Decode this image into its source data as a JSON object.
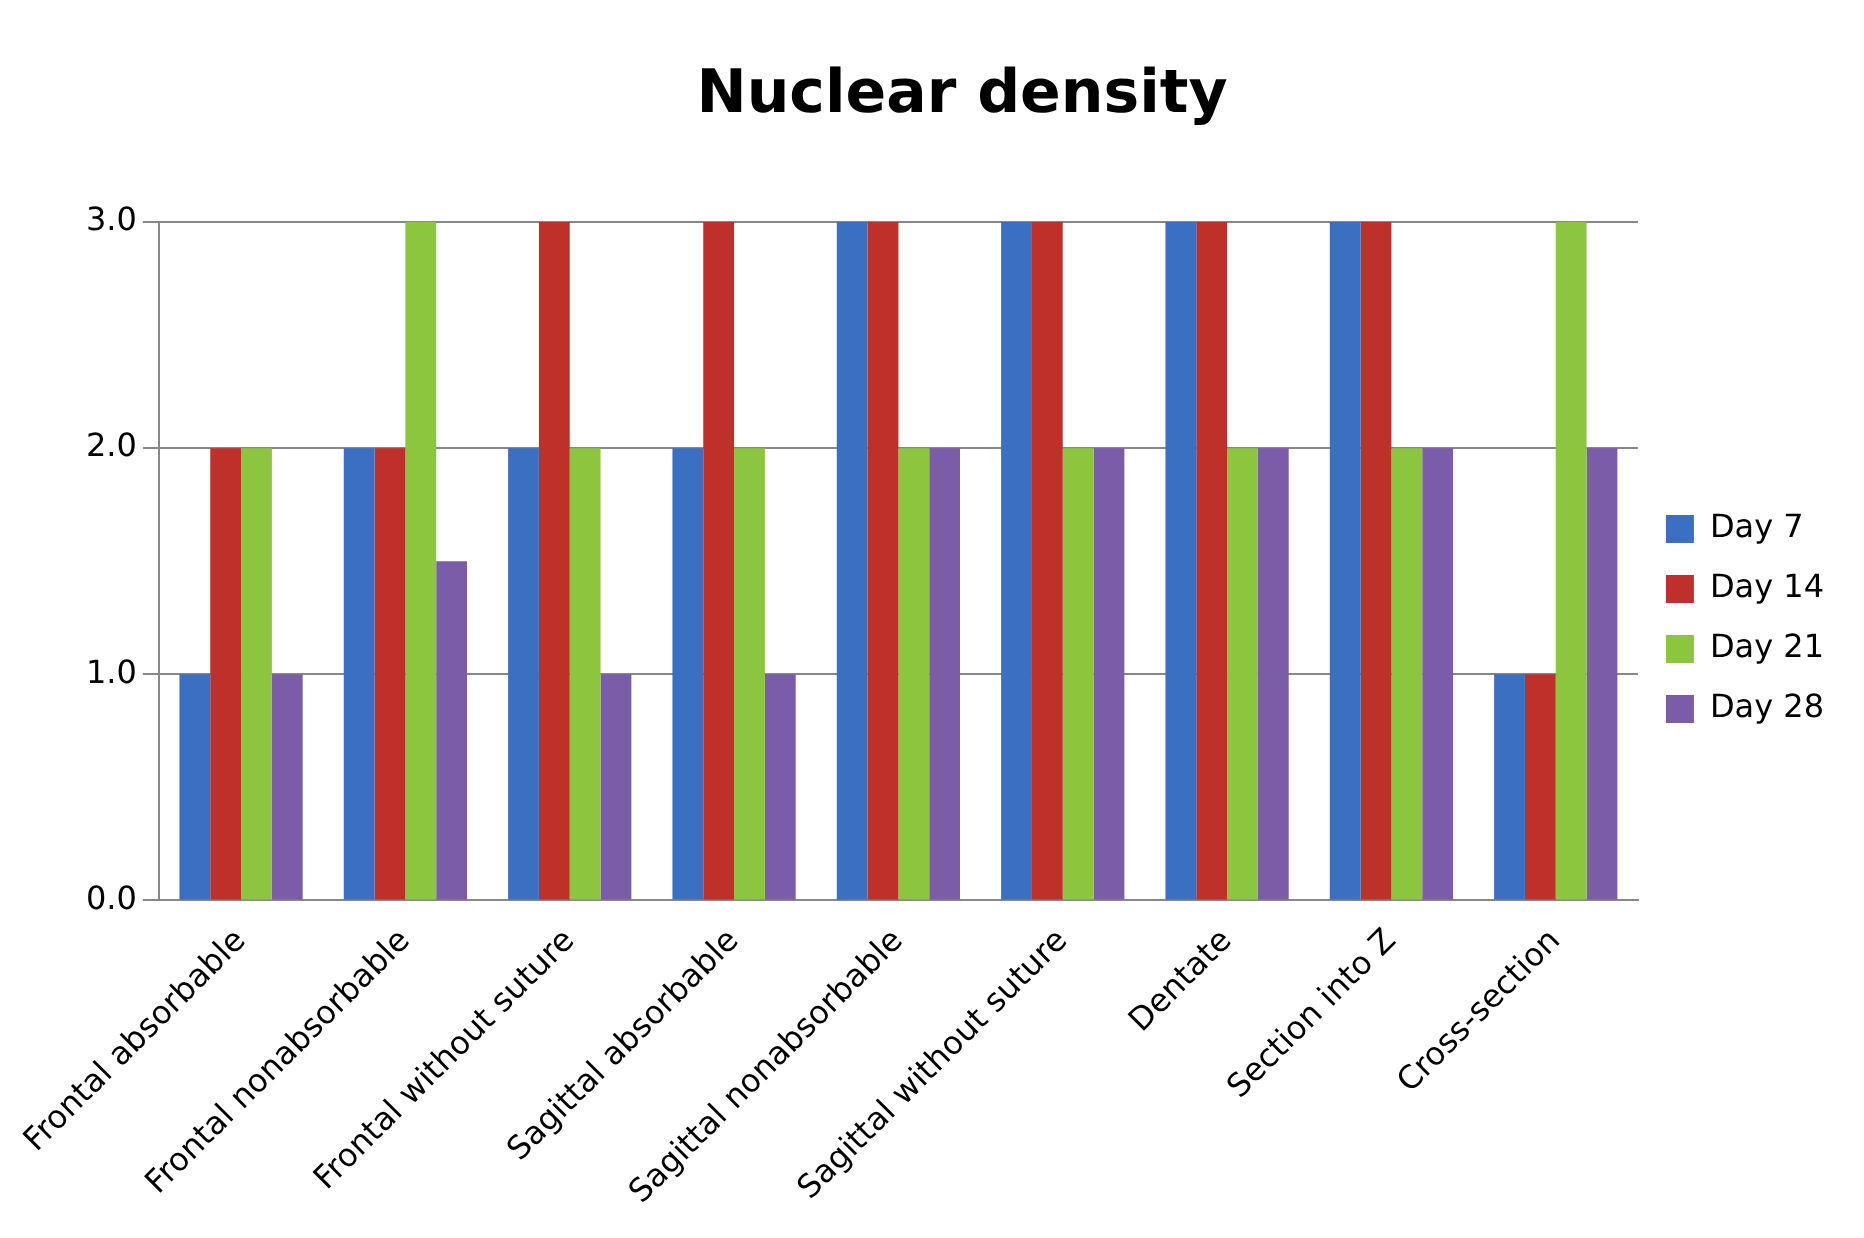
{
  "chart_data": {
    "type": "bar",
    "title": "Nuclear density",
    "categories": [
      "Frontal absorbable",
      "Frontal nonabsorbable",
      "Frontal without suture",
      "Sagittal absorbable",
      "Sagittal nonabsorbable",
      "Sagittal without suture",
      "Dentate",
      "Section into Z",
      "Cross-section"
    ],
    "series": [
      {
        "name": "Day 7",
        "color": "#3b6fc2",
        "values": [
          1,
          2,
          2,
          2,
          3,
          3,
          3,
          3,
          1
        ]
      },
      {
        "name": "Day 14",
        "color": "#c0302b",
        "values": [
          2,
          2,
          3,
          3,
          3,
          3,
          3,
          3,
          1
        ]
      },
      {
        "name": "Day 21",
        "color": "#8cc63f",
        "values": [
          2,
          3,
          2,
          2,
          2,
          2,
          2,
          2,
          3
        ]
      },
      {
        "name": "Day 28",
        "color": "#7b5ca8",
        "values": [
          1,
          1.5,
          1,
          1,
          2,
          2,
          2,
          2,
          2
        ]
      }
    ],
    "ylim": [
      0,
      3
    ],
    "yticks": [
      {
        "value": 0,
        "label": "0.0"
      },
      {
        "value": 1,
        "label": "1.0"
      },
      {
        "value": 2,
        "label": "2.0"
      },
      {
        "value": 3,
        "label": "3.0"
      }
    ],
    "grid": "y",
    "legend": "right"
  }
}
